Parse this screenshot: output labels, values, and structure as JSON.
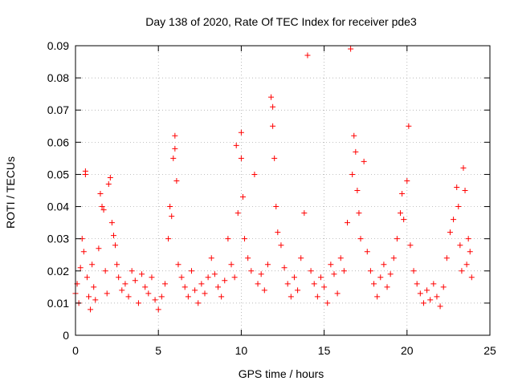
{
  "chart_data": {
    "type": "scatter",
    "title": "Day 138 of 2020, Rate Of TEC Index for receiver pde3",
    "xlabel": "GPS time / hours",
    "ylabel": "ROTI / TECUs",
    "xlim": [
      0,
      25
    ],
    "ylim": [
      0,
      0.09
    ],
    "x_ticks": [
      0,
      5,
      10,
      15,
      20,
      25
    ],
    "y_ticks": [
      0,
      0.01,
      0.02,
      0.03,
      0.04,
      0.05,
      0.06,
      0.07,
      0.08,
      0.09
    ],
    "x_tick_labels": [
      "0",
      "5",
      "10",
      "15",
      "20",
      "25"
    ],
    "y_tick_labels": [
      "0",
      "0.01",
      "0.02",
      "0.03",
      "0.04",
      "0.05",
      "0.06",
      "0.07",
      "0.08",
      "0.09"
    ],
    "grid": true,
    "marker": "+",
    "marker_color": "#ff0000",
    "series": [
      {
        "points": [
          [
            0.0,
            0.013
          ],
          [
            0.1,
            0.016
          ],
          [
            0.2,
            0.01
          ],
          [
            0.3,
            0.021
          ],
          [
            0.4,
            0.03
          ],
          [
            0.5,
            0.026
          ],
          [
            0.6,
            0.051
          ],
          [
            0.6,
            0.05
          ],
          [
            0.7,
            0.018
          ],
          [
            0.8,
            0.012
          ],
          [
            0.9,
            0.008
          ],
          [
            1.0,
            0.022
          ],
          [
            1.1,
            0.015
          ],
          [
            1.2,
            0.011
          ],
          [
            1.4,
            0.027
          ],
          [
            1.5,
            0.044
          ],
          [
            1.6,
            0.04
          ],
          [
            1.7,
            0.039
          ],
          [
            1.8,
            0.02
          ],
          [
            1.9,
            0.013
          ],
          [
            2.0,
            0.047
          ],
          [
            2.1,
            0.049
          ],
          [
            2.2,
            0.035
          ],
          [
            2.3,
            0.031
          ],
          [
            2.4,
            0.028
          ],
          [
            2.5,
            0.022
          ],
          [
            2.6,
            0.018
          ],
          [
            2.8,
            0.014
          ],
          [
            3.0,
            0.016
          ],
          [
            3.2,
            0.012
          ],
          [
            3.4,
            0.02
          ],
          [
            3.6,
            0.017
          ],
          [
            3.8,
            0.01
          ],
          [
            4.0,
            0.019
          ],
          [
            4.2,
            0.015
          ],
          [
            4.4,
            0.013
          ],
          [
            4.6,
            0.018
          ],
          [
            4.8,
            0.011
          ],
          [
            5.0,
            0.008
          ],
          [
            5.2,
            0.012
          ],
          [
            5.4,
            0.016
          ],
          [
            5.6,
            0.03
          ],
          [
            5.7,
            0.04
          ],
          [
            5.8,
            0.037
          ],
          [
            5.9,
            0.055
          ],
          [
            6.0,
            0.062
          ],
          [
            6.0,
            0.058
          ],
          [
            6.1,
            0.048
          ],
          [
            6.2,
            0.022
          ],
          [
            6.4,
            0.018
          ],
          [
            6.6,
            0.015
          ],
          [
            6.8,
            0.012
          ],
          [
            7.0,
            0.02
          ],
          [
            7.2,
            0.014
          ],
          [
            7.4,
            0.01
          ],
          [
            7.6,
            0.016
          ],
          [
            7.8,
            0.013
          ],
          [
            8.0,
            0.018
          ],
          [
            8.2,
            0.024
          ],
          [
            8.4,
            0.019
          ],
          [
            8.6,
            0.015
          ],
          [
            8.8,
            0.012
          ],
          [
            9.0,
            0.017
          ],
          [
            9.2,
            0.03
          ],
          [
            9.4,
            0.022
          ],
          [
            9.6,
            0.018
          ],
          [
            9.7,
            0.059
          ],
          [
            9.8,
            0.038
          ],
          [
            10.0,
            0.063
          ],
          [
            10.0,
            0.055
          ],
          [
            10.1,
            0.043
          ],
          [
            10.2,
            0.03
          ],
          [
            10.4,
            0.024
          ],
          [
            10.6,
            0.02
          ],
          [
            10.8,
            0.05
          ],
          [
            11.0,
            0.016
          ],
          [
            11.2,
            0.019
          ],
          [
            11.4,
            0.014
          ],
          [
            11.6,
            0.022
          ],
          [
            11.8,
            0.074
          ],
          [
            11.9,
            0.071
          ],
          [
            11.9,
            0.065
          ],
          [
            12.0,
            0.055
          ],
          [
            12.1,
            0.04
          ],
          [
            12.2,
            0.032
          ],
          [
            12.4,
            0.028
          ],
          [
            12.6,
            0.021
          ],
          [
            12.8,
            0.016
          ],
          [
            13.0,
            0.012
          ],
          [
            13.2,
            0.018
          ],
          [
            13.4,
            0.014
          ],
          [
            13.6,
            0.024
          ],
          [
            13.8,
            0.038
          ],
          [
            14.0,
            0.087
          ],
          [
            14.2,
            0.02
          ],
          [
            14.4,
            0.016
          ],
          [
            14.6,
            0.012
          ],
          [
            14.8,
            0.018
          ],
          [
            15.0,
            0.015
          ],
          [
            15.2,
            0.01
          ],
          [
            15.4,
            0.022
          ],
          [
            15.6,
            0.019
          ],
          [
            15.8,
            0.013
          ],
          [
            16.0,
            0.024
          ],
          [
            16.2,
            0.02
          ],
          [
            16.4,
            0.035
          ],
          [
            16.6,
            0.089
          ],
          [
            16.7,
            0.05
          ],
          [
            16.8,
            0.062
          ],
          [
            16.9,
            0.057
          ],
          [
            17.0,
            0.045
          ],
          [
            17.1,
            0.038
          ],
          [
            17.2,
            0.03
          ],
          [
            17.4,
            0.054
          ],
          [
            17.6,
            0.026
          ],
          [
            17.8,
            0.02
          ],
          [
            18.0,
            0.016
          ],
          [
            18.2,
            0.012
          ],
          [
            18.4,
            0.018
          ],
          [
            18.6,
            0.022
          ],
          [
            18.8,
            0.015
          ],
          [
            19.0,
            0.019
          ],
          [
            19.2,
            0.024
          ],
          [
            19.4,
            0.03
          ],
          [
            19.6,
            0.038
          ],
          [
            19.7,
            0.044
          ],
          [
            19.8,
            0.036
          ],
          [
            20.0,
            0.048
          ],
          [
            20.1,
            0.065
          ],
          [
            20.2,
            0.028
          ],
          [
            20.4,
            0.02
          ],
          [
            20.6,
            0.016
          ],
          [
            20.8,
            0.013
          ],
          [
            21.0,
            0.01
          ],
          [
            21.2,
            0.014
          ],
          [
            21.4,
            0.011
          ],
          [
            21.6,
            0.016
          ],
          [
            21.8,
            0.012
          ],
          [
            22.0,
            0.009
          ],
          [
            22.2,
            0.015
          ],
          [
            22.4,
            0.024
          ],
          [
            22.6,
            0.032
          ],
          [
            22.8,
            0.036
          ],
          [
            23.0,
            0.046
          ],
          [
            23.1,
            0.04
          ],
          [
            23.2,
            0.028
          ],
          [
            23.3,
            0.02
          ],
          [
            23.4,
            0.052
          ],
          [
            23.5,
            0.045
          ],
          [
            23.6,
            0.022
          ],
          [
            23.7,
            0.03
          ],
          [
            23.8,
            0.026
          ],
          [
            23.9,
            0.018
          ]
        ]
      }
    ]
  }
}
